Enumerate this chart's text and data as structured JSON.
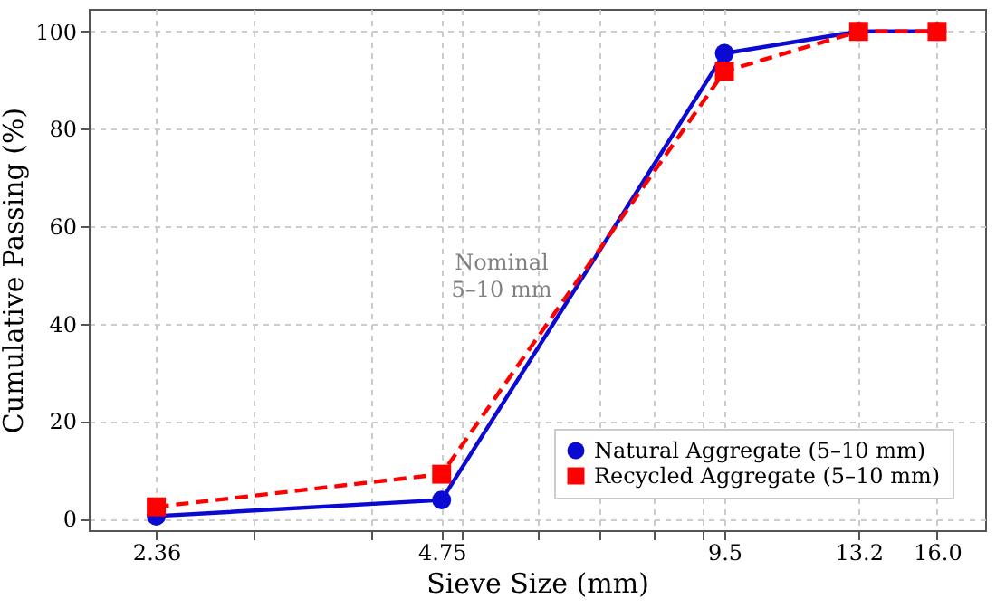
{
  "chart_data": {
    "type": "line",
    "xlabel": "Sieve Size (mm)",
    "ylabel": "Cumulative Passing (%)",
    "x": [
      2.36,
      4.75,
      9.5,
      13.2,
      16.0
    ],
    "series": [
      {
        "name": "Natural Aggregate (5–10 mm)",
        "color": "#0a0ad2",
        "values": [
          0.5,
          3.8,
          95.5,
          100,
          100
        ],
        "marker": "circle",
        "line_style": "solid"
      },
      {
        "name": "Recycled Aggregate (5–10 mm)",
        "color": "#ff0000",
        "values": [
          2.4,
          9.1,
          91.8,
          100,
          100
        ],
        "marker": "square",
        "line_style": "dashed"
      }
    ],
    "log": "x",
    "xlim": [
      2,
      18
    ],
    "xticks": [
      2.36,
      {
        "value": 3,
        "label": null
      },
      {
        "value": 4,
        "label": null
      },
      4.75,
      {
        "value": 5,
        "label": null
      },
      {
        "value": 6,
        "label": null
      },
      {
        "value": 7,
        "label": null
      },
      {
        "value": 8,
        "label": null
      },
      {
        "value": 9,
        "label": null
      },
      9.5,
      13.2,
      {
        "value": 16,
        "label": "16.0"
      }
    ],
    "ylim": [
      -2.4,
      104.6
    ],
    "yticks": [
      0,
      20,
      40,
      60,
      80,
      100
    ],
    "grid": true,
    "legend": "bottom right",
    "annotations": [
      "Nominal\n5–10 mm"
    ]
  }
}
